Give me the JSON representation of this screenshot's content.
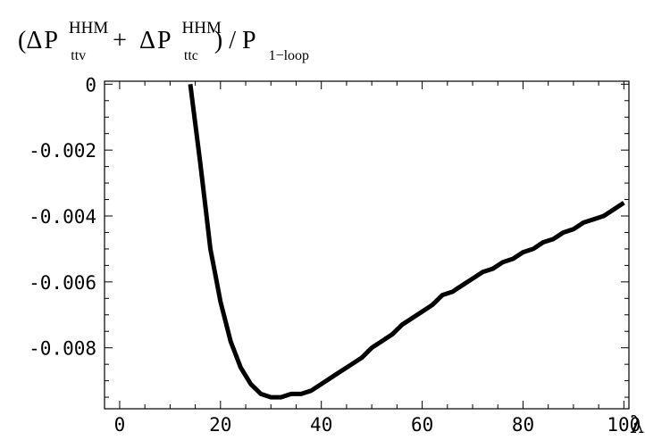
{
  "chart_data": {
    "type": "line",
    "title": {
      "open": "(",
      "delta": "Δ",
      "p": "P",
      "sup1": "HHM",
      "sub1": "ttv",
      "plus": "+",
      "sup2": "HHM",
      "sub2": "ttc",
      "close": ") / P",
      "sub3": "1−loop"
    },
    "xlabel": "λ",
    "ylabel": "",
    "xlim": [
      -3,
      101
    ],
    "ylim": [
      -0.00985,
      9e-05
    ],
    "grid": false,
    "x_ticks": [
      0,
      20,
      40,
      60,
      80,
      100
    ],
    "x_tick_labels": [
      "0",
      "20",
      "40",
      "60",
      "80",
      "100"
    ],
    "y_ticks": [
      0,
      -0.002,
      -0.004,
      -0.006,
      -0.008
    ],
    "y_tick_labels": [
      "0",
      "-0.002",
      "-0.004",
      "-0.006",
      "-0.008"
    ],
    "series": [
      {
        "x": [
          14,
          15,
          16,
          17,
          18,
          19,
          20,
          21,
          22,
          23,
          24,
          26,
          28,
          30,
          32,
          34,
          36,
          38,
          40,
          42,
          44,
          46,
          48,
          50,
          52,
          54,
          56,
          58,
          60,
          62,
          64,
          66,
          68,
          70,
          72,
          74,
          76,
          78,
          80,
          82,
          84,
          86,
          88,
          90,
          92,
          94,
          96,
          98,
          100
        ],
        "values": [
          0,
          -0.0012,
          -0.0024,
          -0.0037,
          -0.005,
          -0.0058,
          -0.0066,
          -0.0072,
          -0.0078,
          -0.0082,
          -0.0086,
          -0.0091,
          -0.0094,
          -0.0095,
          -0.0095,
          -0.0094,
          -0.0094,
          -0.0093,
          -0.0091,
          -0.0089,
          -0.0087,
          -0.0085,
          -0.0083,
          -0.008,
          -0.0078,
          -0.0076,
          -0.0073,
          -0.0071,
          -0.0069,
          -0.0067,
          -0.0064,
          -0.0063,
          -0.0061,
          -0.0059,
          -0.0057,
          -0.0056,
          -0.0054,
          -0.0053,
          -0.0051,
          -0.005,
          -0.0048,
          -0.0047,
          -0.0045,
          -0.0044,
          -0.0042,
          -0.0041,
          -0.004,
          -0.0038,
          -0.0036
        ]
      }
    ]
  }
}
